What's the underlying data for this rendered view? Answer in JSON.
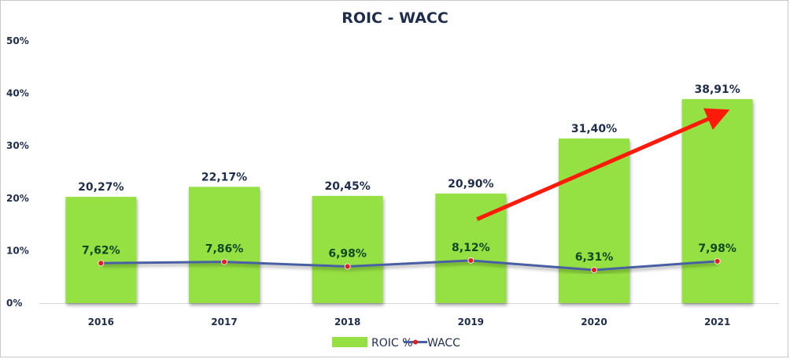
{
  "chart_data": {
    "type": "bar",
    "title": "ROIC - WACC",
    "categories": [
      "2016",
      "2017",
      "2018",
      "2019",
      "2020",
      "2021"
    ],
    "series": [
      {
        "name": "ROIC %",
        "type": "bar",
        "color": "#95e042",
        "values": [
          20.27,
          22.17,
          20.45,
          20.9,
          31.4,
          38.91
        ],
        "labels": [
          "20,27%",
          "22,17%",
          "20,45%",
          "20,90%",
          "31,40%",
          "38,91%"
        ]
      },
      {
        "name": "WACC",
        "type": "line",
        "color": "#4a5fa3",
        "marker_color": "#e0201f",
        "values": [
          7.62,
          7.86,
          6.98,
          8.12,
          6.31,
          7.98
        ],
        "labels": [
          "7,62%",
          "7,86%",
          "6,98%",
          "8,12%",
          "6,31%",
          "7,98%"
        ]
      }
    ],
    "ylim": [
      0,
      50
    ],
    "yticks": [
      "0%",
      "10%",
      "20%",
      "30%",
      "40%",
      "50%"
    ],
    "xlabel": "",
    "ylabel": "",
    "legend_position": "bottom",
    "grid": false,
    "annotation": {
      "type": "arrow",
      "color": "#ff1a0a",
      "from": [
        "2019",
        16
      ],
      "to": [
        "2021",
        36
      ]
    }
  }
}
